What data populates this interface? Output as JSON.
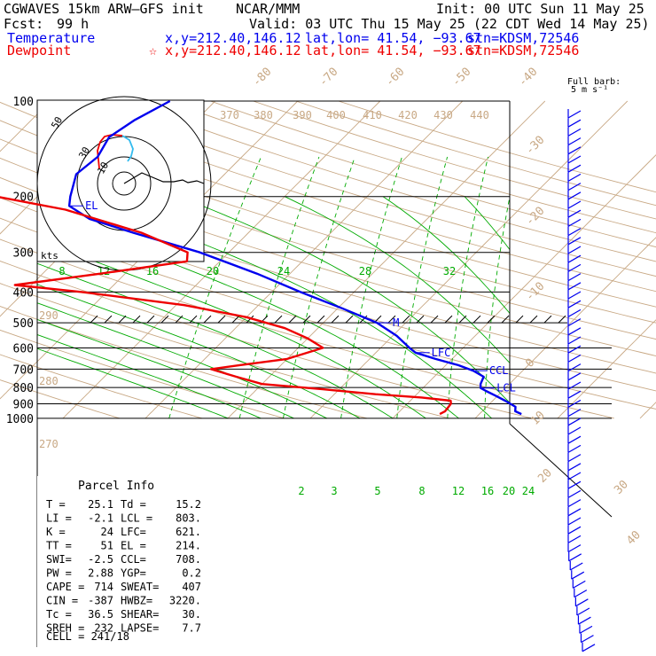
{
  "header": {
    "title": "CGWAVES 15km ARW—GFS init",
    "center": "NCAR/MMM",
    "init": "Init: 00 UTC Sun 11 May 25",
    "fcst_label": "Fcst:",
    "fcst_value": "99 h",
    "valid": "Valid: 03 UTC Thu 15 May 25 (22 CDT Wed 14 May 25)",
    "temp_label": "Temperature",
    "temp_xy": "x,y=212.40,146.12",
    "temp_latlon": "lat,lon= 41.54, −93.67",
    "temp_stn": "stn=KDSM,72546",
    "dew_label": "Dewpoint",
    "dew_xy": "☆ x,y=212.40,146.12",
    "dew_latlon": "lat,lon= 41.54, −93.67",
    "dew_stn": "stn=KDSM,72546",
    "barb_note_1": "Full barb:",
    "barb_note_2": "5 m s⁻¹"
  },
  "colors": {
    "temperature": "#0000ee",
    "dewpoint": "#ee0000",
    "dry_adiabat": "#c8a884",
    "moist": "#00aa00",
    "grid": "#000000",
    "hodograph_dew": "#ee0000",
    "hodograph_cyan": "#33bbee"
  },
  "parcel_info": {
    "title": "Parcel Info",
    "rows": [
      [
        "T  =",
        "25.1",
        "Td =",
        "15.2"
      ],
      [
        "LI =",
        "-2.1",
        "LCL =",
        "803."
      ],
      [
        "K  =",
        "24",
        "LFC=",
        "621."
      ],
      [
        "TT =",
        "51",
        "EL =",
        "214."
      ],
      [
        "SWI=",
        "-2.5",
        "CCL=",
        "708."
      ],
      [
        "PW =",
        "2.88",
        "YGP=",
        "0.2"
      ],
      [
        "CAPE =",
        "714",
        "SWEAT=",
        "407"
      ],
      [
        "CIN =",
        "-387",
        "HWBZ=",
        "3220."
      ],
      [
        "Tc =",
        "36.5",
        "SHEAR=",
        "30."
      ],
      [
        "SREH =",
        "232",
        "LAPSE=",
        "7.7"
      ]
    ],
    "cell": "CELL = 241/18"
  },
  "hodograph": {
    "unit_label": "kts",
    "rings": [
      "10",
      "30",
      "50"
    ]
  },
  "chart_data": {
    "type": "line",
    "title": "CGWAVES 15km ARW—GFS init",
    "xlabel": "",
    "ylabel": "",
    "pressure_levels": [
      100,
      200,
      300,
      400,
      500,
      600,
      700,
      800,
      900,
      1000
    ],
    "pressure_labels": [
      "100",
      "200",
      "300",
      "400",
      "500",
      "600",
      "700",
      "800",
      "900",
      "1000"
    ],
    "theta_labels": [
      "370",
      "380",
      "390",
      "400",
      "410",
      "420",
      "430",
      "440"
    ],
    "isotherm_labels": [
      "-80",
      "-70",
      "-60",
      "-50",
      "-40",
      "-30",
      "-20",
      "-10",
      "0",
      "10",
      "20",
      "30",
      "40"
    ],
    "theta_left_labels": [
      "290",
      "280",
      "270"
    ],
    "mixing_ratio_labels_upper": [
      "8",
      "12",
      "16",
      "20",
      "24",
      "28",
      "32"
    ],
    "mixing_ratio_labels_lower": [
      "2",
      "3",
      "5",
      "8",
      "12",
      "16",
      "20",
      "24"
    ],
    "markers": [
      {
        "label": "EL",
        "p": 214
      },
      {
        "label": "M",
        "p": 500
      },
      {
        "label": "LFC",
        "p": 621
      },
      {
        "label": "CCL",
        "p": 708
      },
      {
        "label": "LCL",
        "p": 803
      }
    ],
    "series": [
      {
        "name": "Temperature",
        "p": [
          970,
          950,
          920,
          880,
          850,
          820,
          803,
          780,
          740,
          708,
          680,
          650,
          621,
          600,
          550,
          500,
          450,
          400,
          350,
          300,
          260,
          235,
          214,
          200,
          170,
          150,
          130,
          115,
          100
        ],
        "t": [
          25.1,
          24.0,
          23.5,
          21.5,
          19.8,
          18.0,
          17.0,
          16.5,
          16.0,
          14.0,
          11.5,
          8.0,
          4.8,
          3.5,
          0.5,
          -3.5,
          -9.5,
          -16.5,
          -24.0,
          -33.5,
          -44.0,
          -51.0,
          -55.0,
          -56.0,
          -58.0,
          -57.5,
          -58.5,
          -57.5,
          -55.5
        ]
      },
      {
        "name": "Dewpoint",
        "p": [
          970,
          950,
          900,
          880,
          860,
          840,
          810,
          780,
          740,
          700,
          680,
          650,
          600,
          560,
          520,
          480,
          440,
          400,
          380,
          350,
          320,
          300,
          260,
          220,
          200,
          170,
          150,
          130,
          115,
          100
        ],
        "t": [
          15.2,
          15.5,
          15.3,
          14.9,
          11.0,
          5.0,
          -2.0,
          -10.0,
          -14.0,
          -18.0,
          -15.0,
          -10.0,
          -7.0,
          -10.0,
          -14.0,
          -20.0,
          -29.0,
          -43.0,
          -52.0,
          -43.0,
          -34.0,
          -35.0,
          -43.0,
          -55.0,
          -65.0,
          -74.0,
          -77.0,
          -81.0,
          -83.0,
          -84.0
        ]
      }
    ]
  }
}
